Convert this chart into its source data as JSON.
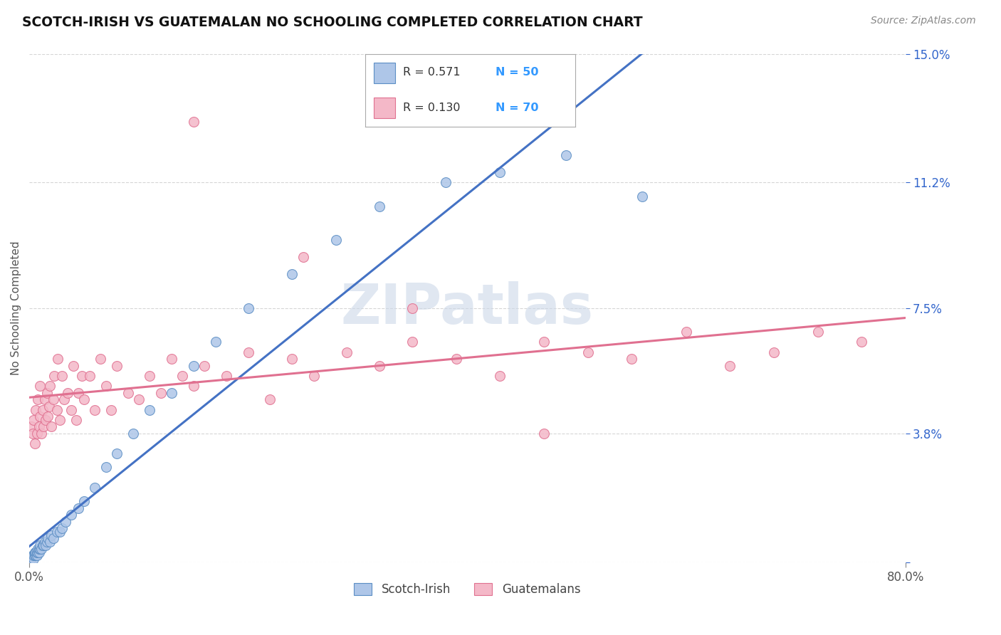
{
  "title": "SCOTCH-IRISH VS GUATEMALAN NO SCHOOLING COMPLETED CORRELATION CHART",
  "source": "Source: ZipAtlas.com",
  "ylabel": "No Schooling Completed",
  "xlim": [
    0.0,
    0.8
  ],
  "ylim": [
    0.0,
    0.15
  ],
  "xticklabels": [
    "0.0%",
    "80.0%"
  ],
  "ytick_positions": [
    0.0,
    0.038,
    0.075,
    0.112,
    0.15
  ],
  "ytick_labels": [
    "",
    "3.8%",
    "7.5%",
    "11.2%",
    "15.0%"
  ],
  "grid_color": "#cccccc",
  "background_color": "#ffffff",
  "series": [
    {
      "name": "Scotch-Irish",
      "color": "#aec6e8",
      "edge_color": "#5b8ec4",
      "R": 0.571,
      "N": 50,
      "line_color": "#4472c4",
      "line_style": "-"
    },
    {
      "name": "Guatemalans",
      "color": "#f4b8c8",
      "edge_color": "#e07090",
      "R": 0.13,
      "N": 70,
      "line_color": "#e07090",
      "line_style": "-"
    }
  ],
  "legend_R_color": "#333333",
  "legend_N_color": "#3399ff",
  "watermark": "ZIPatlas",
  "watermark_color": "#ccd8e8",
  "scotch_irish_x": [
    0.001,
    0.002,
    0.003,
    0.004,
    0.004,
    0.005,
    0.005,
    0.006,
    0.006,
    0.007,
    0.007,
    0.008,
    0.008,
    0.009,
    0.009,
    0.01,
    0.01,
    0.011,
    0.012,
    0.013,
    0.014,
    0.015,
    0.016,
    0.017,
    0.019,
    0.02,
    0.022,
    0.025,
    0.028,
    0.03,
    0.033,
    0.038,
    0.045,
    0.05,
    0.06,
    0.07,
    0.08,
    0.095,
    0.11,
    0.13,
    0.15,
    0.17,
    0.2,
    0.24,
    0.28,
    0.32,
    0.38,
    0.43,
    0.49,
    0.56
  ],
  "scotch_irish_y": [
    0.001,
    0.001,
    0.002,
    0.001,
    0.002,
    0.002,
    0.003,
    0.002,
    0.003,
    0.002,
    0.003,
    0.003,
    0.004,
    0.003,
    0.004,
    0.004,
    0.005,
    0.004,
    0.005,
    0.005,
    0.006,
    0.005,
    0.006,
    0.007,
    0.006,
    0.008,
    0.007,
    0.009,
    0.009,
    0.01,
    0.012,
    0.014,
    0.016,
    0.018,
    0.022,
    0.028,
    0.032,
    0.038,
    0.045,
    0.05,
    0.058,
    0.065,
    0.075,
    0.085,
    0.095,
    0.105,
    0.112,
    0.115,
    0.12,
    0.108
  ],
  "guatemalan_x": [
    0.002,
    0.003,
    0.004,
    0.005,
    0.006,
    0.007,
    0.008,
    0.009,
    0.01,
    0.01,
    0.011,
    0.012,
    0.013,
    0.014,
    0.015,
    0.016,
    0.017,
    0.018,
    0.019,
    0.02,
    0.022,
    0.023,
    0.025,
    0.026,
    0.028,
    0.03,
    0.032,
    0.035,
    0.038,
    0.04,
    0.043,
    0.045,
    0.048,
    0.05,
    0.055,
    0.06,
    0.065,
    0.07,
    0.075,
    0.08,
    0.09,
    0.1,
    0.11,
    0.12,
    0.13,
    0.14,
    0.15,
    0.16,
    0.18,
    0.2,
    0.22,
    0.24,
    0.26,
    0.29,
    0.32,
    0.35,
    0.39,
    0.43,
    0.47,
    0.51,
    0.55,
    0.6,
    0.64,
    0.68,
    0.72,
    0.76,
    0.15,
    0.25,
    0.35,
    0.47
  ],
  "guatemalan_y": [
    0.04,
    0.038,
    0.042,
    0.035,
    0.045,
    0.038,
    0.048,
    0.04,
    0.043,
    0.052,
    0.038,
    0.045,
    0.04,
    0.048,
    0.042,
    0.05,
    0.043,
    0.046,
    0.052,
    0.04,
    0.048,
    0.055,
    0.045,
    0.06,
    0.042,
    0.055,
    0.048,
    0.05,
    0.045,
    0.058,
    0.042,
    0.05,
    0.055,
    0.048,
    0.055,
    0.045,
    0.06,
    0.052,
    0.045,
    0.058,
    0.05,
    0.048,
    0.055,
    0.05,
    0.06,
    0.055,
    0.052,
    0.058,
    0.055,
    0.062,
    0.048,
    0.06,
    0.055,
    0.062,
    0.058,
    0.065,
    0.06,
    0.055,
    0.065,
    0.062,
    0.06,
    0.068,
    0.058,
    0.062,
    0.068,
    0.065,
    0.13,
    0.09,
    0.075,
    0.038
  ]
}
